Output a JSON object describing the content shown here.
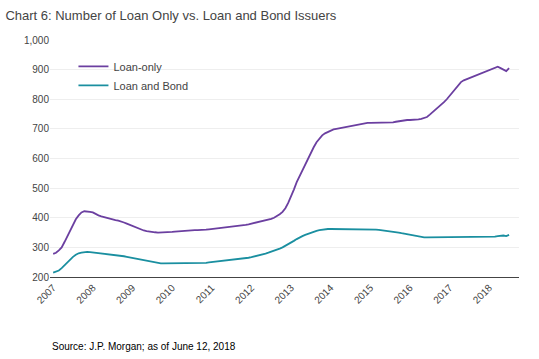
{
  "chart_data": {
    "type": "line",
    "title": "Chart 6: Number of Loan Only vs. Loan and Bond Issuers",
    "annotations": [
      "Source: J.P. Morgan; as of June 12, 2018"
    ],
    "x": [
      2007,
      2007.0714,
      2007.1429,
      2007.2143,
      2007.2857,
      2007.3571,
      2007.4286,
      2007.5,
      2007.5714,
      2007.6429,
      2007.7143,
      2007.7857,
      2007.8571,
      2007.9286,
      2008,
      2008.0714,
      2008.1429,
      2008.2143,
      2008.2857,
      2008.3571,
      2008.4286,
      2008.5,
      2008.5714,
      2008.6429,
      2008.7143,
      2008.7857,
      2008.8571,
      2008.9286,
      2009,
      2009.0714,
      2009.1429,
      2009.2143,
      2009.2857,
      2009.3571,
      2009.4286,
      2009.5,
      2009.5714,
      2009.6429,
      2009.7143,
      2009.7857,
      2009.8571,
      2009.9286,
      2010,
      2010.0714,
      2010.1429,
      2010.2143,
      2010.2857,
      2010.3571,
      2010.4286,
      2010.5,
      2010.5714,
      2010.6429,
      2010.7143,
      2010.7857,
      2010.8571,
      2010.9286,
      2011,
      2011.0714,
      2011.1429,
      2011.2143,
      2011.2857,
      2011.3571,
      2011.4286,
      2011.5,
      2011.5714,
      2011.6429,
      2011.7143,
      2011.7857,
      2011.8571,
      2011.9286,
      2012,
      2012.0714,
      2012.1429,
      2012.2143,
      2012.2857,
      2012.3571,
      2012.4286,
      2012.5,
      2012.5714,
      2012.6429,
      2012.7143,
      2012.7857,
      2012.8571,
      2012.9286,
      2013,
      2013.0714,
      2013.1429,
      2013.2143,
      2013.2857,
      2013.3571,
      2013.4286,
      2013.5,
      2013.5714,
      2013.6429,
      2013.7143,
      2013.7857,
      2013.8571,
      2013.9286,
      2014,
      2014.0714,
      2014.1429,
      2014.2143,
      2014.2857,
      2014.3571,
      2014.4286,
      2014.5,
      2014.5714,
      2014.6429,
      2014.7143,
      2014.7857,
      2014.8571,
      2014.9286,
      2015,
      2015.0714,
      2015.1429,
      2015.2143,
      2015.2857,
      2015.3571,
      2015.4286,
      2015.5,
      2015.5714,
      2015.6429,
      2015.7143,
      2015.7857,
      2015.8571,
      2015.9286,
      2016,
      2016.0714,
      2016.1429,
      2016.2143,
      2016.2857,
      2016.3571,
      2016.4286,
      2016.5,
      2016.5714,
      2016.6429,
      2016.7143,
      2016.7857,
      2016.8571,
      2016.9286,
      2017,
      2017.0714,
      2017.1429,
      2017.2143,
      2017.2857,
      2017.3571,
      2017.4286,
      2017.5,
      2017.5714,
      2017.6429,
      2017.7143,
      2017.7857,
      2017.8571,
      2017.9286,
      2018,
      2018.0714,
      2018.1429,
      2018.2143,
      2018.2857,
      2018.3571,
      2018.4286,
      2018.5
    ],
    "series": [
      {
        "name": "Loan-only",
        "color": "#6B3FA0",
        "values": [
          278,
          282,
          290,
          300,
          318,
          338,
          360,
          378,
          395,
          408,
          418,
          422,
          422,
          420,
          418,
          412,
          408,
          405,
          402,
          400,
          397,
          394,
          392,
          390,
          388,
          384,
          380,
          376,
          372,
          368,
          364,
          360,
          357,
          355,
          353,
          352,
          351,
          350,
          350,
          350,
          350,
          351,
          352,
          353,
          354,
          355,
          356,
          357,
          358,
          358,
          358,
          358,
          358,
          359,
          360,
          361,
          362,
          363,
          364,
          365,
          366,
          367,
          368,
          369,
          370,
          371,
          372,
          374,
          376,
          378,
          380,
          382,
          384,
          386,
          388,
          390,
          393,
          396,
          400,
          405,
          412,
          420,
          432,
          450,
          470,
          495,
          520,
          540,
          562,
          580,
          600,
          620,
          638,
          655,
          668,
          678,
          685,
          690,
          695,
          698,
          700,
          702,
          704,
          706,
          708,
          710,
          712,
          714,
          716,
          718,
          720,
          720,
          720,
          720,
          720,
          720,
          720,
          720,
          720,
          720,
          722,
          724,
          726,
          728,
          730,
          730,
          730,
          730,
          730,
          732,
          734,
          736,
          740,
          748,
          756,
          764,
          772,
          780,
          790,
          800,
          812,
          824,
          836,
          848,
          858,
          864,
          868,
          872,
          876,
          880,
          884,
          888,
          892,
          896,
          900,
          904,
          908,
          910,
          905,
          900,
          895,
          905
        ]
      },
      {
        "name": "Loan and Bond",
        "color": "#1a8fa0",
        "values": [
          215,
          218,
          222,
          230,
          240,
          250,
          260,
          268,
          275,
          280,
          282,
          284,
          285,
          284,
          283,
          282,
          281,
          280,
          279,
          278,
          277,
          276,
          275,
          274,
          272,
          270,
          268,
          266,
          264,
          262,
          260,
          258,
          256,
          254,
          252,
          250,
          248,
          247,
          246,
          246,
          246,
          246,
          246,
          246,
          246,
          246,
          246,
          246,
          246,
          246,
          246,
          246,
          246,
          247,
          248,
          249,
          250,
          251,
          252,
          253,
          254,
          255,
          256,
          257,
          258,
          259,
          260,
          261,
          263,
          265,
          267,
          269,
          271,
          273,
          276,
          279,
          282,
          285,
          288,
          292,
          296,
          300,
          305,
          310,
          316,
          322,
          328,
          334,
          338,
          342,
          346,
          350,
          353,
          356,
          358,
          360,
          361,
          362,
          362,
          362,
          362,
          362,
          362,
          362,
          362,
          362,
          362,
          362,
          362,
          362,
          362,
          362,
          362,
          361,
          360,
          359,
          358,
          357,
          356,
          355,
          354,
          352,
          350,
          348,
          346,
          344,
          342,
          340,
          338,
          336,
          335,
          334,
          334,
          334,
          334,
          334,
          334,
          334,
          334,
          334,
          334,
          334,
          334,
          334,
          334,
          334,
          334,
          334,
          334,
          334,
          334,
          334,
          334,
          334,
          334,
          335,
          336,
          338,
          340,
          340,
          338,
          342
        ]
      }
    ],
    "xlim": [
      2006.92,
      2018.75
    ],
    "xticks": [
      2007,
      2008,
      2009,
      2010,
      2011,
      2012,
      2013,
      2014,
      2015,
      2016,
      2017,
      2018
    ],
    "ylim": [
      200,
      1000
    ],
    "yticks": [
      200,
      300,
      400,
      500,
      600,
      700,
      800,
      900,
      {
        "value": 1000,
        "label": "1,000"
      }
    ],
    "grid": true,
    "legend": "upper left"
  }
}
